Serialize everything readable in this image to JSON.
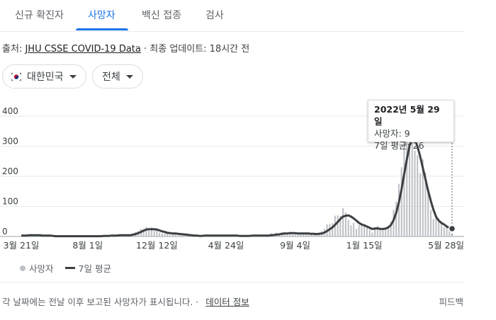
{
  "tabs": [
    {
      "label": "신규 확진자",
      "active": false
    },
    {
      "label": "사망자",
      "active": true
    },
    {
      "label": "백신 접종",
      "active": false
    },
    {
      "label": "검사",
      "active": false
    }
  ],
  "source": {
    "prefix": "출처:",
    "link": "JHU CSSE COVID-19 Data",
    "updated": "· 최종 업데이트: 18시간 전"
  },
  "filters": {
    "region": "대한민국",
    "period": "전체"
  },
  "tooltip": {
    "date": "2022년 5월 29일",
    "deaths": "사망자: 9",
    "avg": "7일 평균: 26"
  },
  "legend": {
    "deaths": "사망자",
    "avg": "7일 평균"
  },
  "footer": {
    "note": "각 날짜에는 전날 이후 보고된 사망자가 표시됩니다. ·",
    "link": "데이터 정보",
    "feedback": "피드백"
  },
  "colors": {
    "accent": "#1a73e8",
    "bars": "#bdc1c6",
    "avg_line": "#3c4043"
  },
  "chart_data": {
    "type": "bar",
    "ylim": [
      0,
      400
    ],
    "yticks": [
      0,
      100,
      200,
      300,
      400
    ],
    "xticks": [
      "3월 21일",
      "8월 1일",
      "12월 12일",
      "4월 24일",
      "9월 4일",
      "1월 15일",
      "5월 28일"
    ],
    "series": [
      {
        "name": "사망자",
        "style": "bars",
        "values": [
          1,
          2,
          5,
          5,
          5,
          1,
          4,
          5,
          3,
          4,
          3,
          2,
          1,
          1,
          1,
          1,
          1,
          2,
          1,
          1,
          1,
          1,
          2,
          1,
          0,
          1,
          1,
          2,
          1,
          1,
          1,
          1,
          4,
          3,
          4,
          2,
          4,
          5,
          3,
          4,
          4,
          3,
          4,
          15,
          18,
          25,
          25,
          32,
          19,
          30,
          20,
          24,
          13,
          11,
          11,
          14,
          5,
          11,
          12,
          4,
          5,
          6,
          8,
          1,
          4,
          1,
          3,
          1,
          3,
          6,
          2,
          5,
          3,
          3,
          3,
          3,
          4,
          4,
          3,
          1,
          1,
          3,
          2,
          2,
          3,
          2,
          4,
          4,
          1,
          3,
          2,
          1,
          3,
          5,
          11,
          6,
          13,
          7,
          14,
          12,
          6,
          16,
          12,
          9,
          6,
          10,
          9,
          10,
          12,
          11,
          5,
          6,
          12,
          18,
          25,
          40,
          41,
          44,
          69,
          70,
          68,
          94,
          80,
          55,
          37,
          45,
          25,
          38,
          41,
          34,
          29,
          23,
          13,
          31,
          35,
          22,
          21,
          26,
          36,
          48,
          89,
          116,
          175,
          230,
          313,
          368,
          402,
          382,
          285,
          270,
          210,
          256,
          212,
          152,
          88,
          58,
          67,
          54,
          47,
          31,
          38,
          31,
          9
        ]
      },
      {
        "name": "7일 평균",
        "style": "line",
        "values": [
          3,
          3,
          3,
          4,
          4,
          4,
          4,
          4,
          3,
          3,
          3,
          3,
          2,
          1,
          1,
          1,
          1,
          1,
          1,
          1,
          1,
          1,
          1,
          1,
          1,
          1,
          1,
          1,
          1,
          1,
          1,
          2,
          2,
          2,
          3,
          3,
          3,
          4,
          4,
          4,
          4,
          4,
          6,
          8,
          11,
          15,
          19,
          23,
          24,
          24,
          24,
          23,
          20,
          17,
          15,
          12,
          11,
          10,
          10,
          9,
          8,
          7,
          6,
          5,
          4,
          3,
          3,
          2,
          2,
          3,
          3,
          3,
          3,
          3,
          3,
          3,
          3,
          3,
          3,
          3,
          3,
          3,
          2,
          2,
          2,
          2,
          2,
          3,
          3,
          3,
          3,
          3,
          3,
          3,
          4,
          5,
          6,
          7,
          9,
          10,
          10,
          11,
          11,
          11,
          10,
          10,
          10,
          10,
          10,
          9,
          9,
          8,
          9,
          10,
          13,
          18,
          24,
          30,
          39,
          48,
          58,
          66,
          69,
          70,
          66,
          60,
          53,
          45,
          40,
          37,
          33,
          29,
          25,
          26,
          27,
          25,
          25,
          26,
          30,
          38,
          54,
          79,
          113,
          157,
          207,
          256,
          302,
          322,
          322,
          299,
          266,
          228,
          190,
          152,
          118,
          89,
          65,
          53,
          45,
          40,
          33,
          29,
          26
        ]
      }
    ]
  }
}
